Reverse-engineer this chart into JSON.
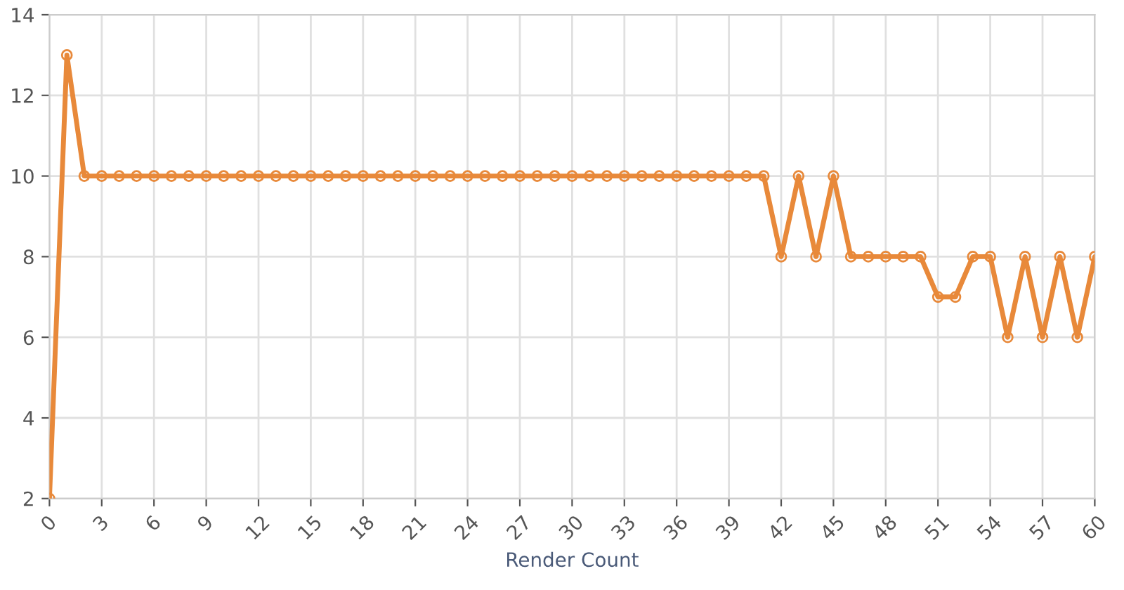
{
  "chart_data": {
    "type": "line",
    "xlabel": "Render Count",
    "x": [
      0,
      1,
      2,
      3,
      4,
      5,
      6,
      7,
      8,
      9,
      10,
      11,
      12,
      13,
      14,
      15,
      16,
      17,
      18,
      19,
      20,
      21,
      22,
      23,
      24,
      25,
      26,
      27,
      28,
      29,
      30,
      31,
      32,
      33,
      34,
      35,
      36,
      37,
      38,
      39,
      40,
      41,
      42,
      43,
      44,
      45,
      46,
      47,
      48,
      49,
      50,
      51,
      52,
      53,
      54,
      55,
      56,
      57,
      58,
      59,
      60
    ],
    "series": [
      {
        "color": "#e8893a",
        "values": [
          2,
          13,
          10,
          10,
          10,
          10,
          10,
          10,
          10,
          10,
          10,
          10,
          10,
          10,
          10,
          10,
          10,
          10,
          10,
          10,
          10,
          10,
          10,
          10,
          10,
          10,
          10,
          10,
          10,
          10,
          10,
          10,
          10,
          10,
          10,
          10,
          10,
          10,
          10,
          10,
          10,
          10,
          8,
          10,
          8,
          10,
          8,
          8,
          8,
          8,
          8,
          7,
          7,
          8,
          8,
          6,
          8,
          6,
          8,
          6,
          8
        ]
      }
    ],
    "xlim": [
      0,
      60
    ],
    "xticks": [
      0,
      3,
      6,
      9,
      12,
      15,
      18,
      21,
      24,
      27,
      30,
      33,
      36,
      39,
      42,
      45,
      48,
      51,
      54,
      57,
      60
    ],
    "ylim": [
      2,
      14
    ],
    "yticks": [
      2,
      4,
      6,
      8,
      10,
      12,
      14
    ],
    "grid": true,
    "marker": "circle",
    "line_style": "solid",
    "legend": false
  }
}
